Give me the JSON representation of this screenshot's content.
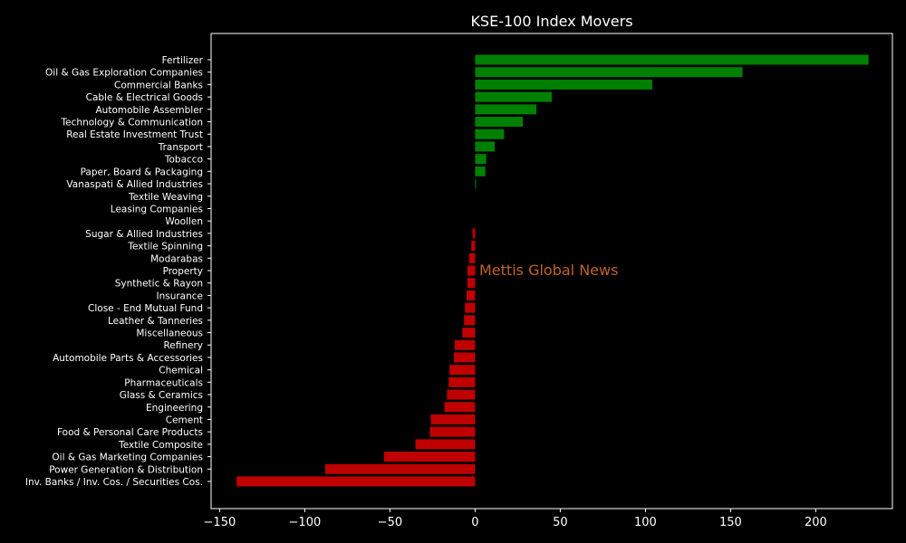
{
  "chart_data": {
    "type": "bar",
    "orientation": "horizontal",
    "title": "KSE-100 Index Movers",
    "xlabel": "",
    "ylabel": "",
    "xlim": [
      -155,
      245
    ],
    "xticks": [
      -150,
      -100,
      -50,
      0,
      50,
      100,
      150,
      200
    ],
    "xtick_labels": [
      "−150",
      "−100",
      "−50",
      "0",
      "50",
      "100",
      "150",
      "200"
    ],
    "grid": false,
    "categories": [
      "Fertilizer",
      "Oil & Gas Exploration Companies",
      "Commercial Banks",
      "Cable & Electrical Goods",
      "Automobile Assembler",
      "Technology & Communication",
      "Real Estate Investment Trust",
      "Transport",
      "Tobacco",
      "Paper, Board & Packaging",
      "Vanaspati & Allied Industries",
      "Textile Weaving",
      "Leasing Companies",
      "Woollen",
      "Sugar & Allied Industries",
      "Textile Spinning",
      "Modarabas",
      "Property",
      "Synthetic & Rayon",
      "Insurance",
      "Close - End Mutual Fund",
      "Leather & Tanneries",
      "Miscellaneous",
      "Refinery",
      "Automobile Parts & Accessories",
      "Chemical",
      "Pharmaceuticals",
      "Glass & Ceramics",
      "Engineering",
      "Cement",
      "Food & Personal Care Products",
      "Textile Composite",
      "Oil & Gas Marketing Companies",
      "Power Generation & Distribution",
      "Inv. Banks / Inv. Cos. / Securities Cos."
    ],
    "values": [
      231,
      157,
      104,
      45,
      36,
      28,
      17,
      11.5,
      6.5,
      6,
      0.3,
      0,
      0,
      0,
      -1.5,
      -2.2,
      -3.5,
      -4.5,
      -4.5,
      -5,
      -6,
      -6.5,
      -7.5,
      -12,
      -12.5,
      -15,
      -15.5,
      -16.5,
      -18,
      -26,
      -26.5,
      -35,
      -53.5,
      -88,
      -140
    ],
    "colors": {
      "positive": "#008000",
      "negative": "#c00000",
      "background": "#000000",
      "foreground": "#ffffff"
    },
    "annotation": {
      "text": "Mettis Global News",
      "color": "#c0622a"
    }
  }
}
